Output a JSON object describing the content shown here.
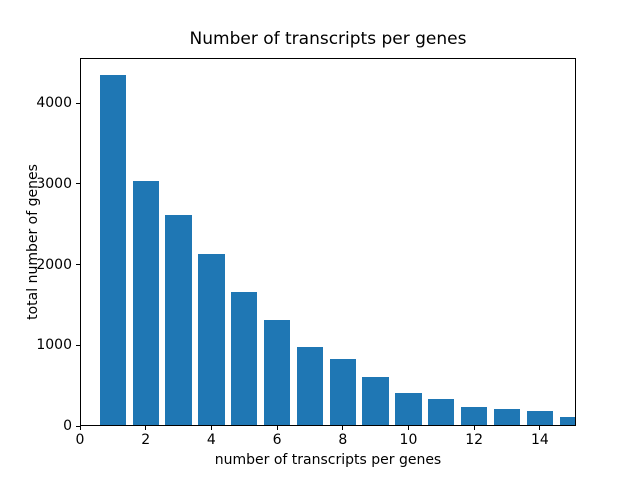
{
  "chart_data": {
    "type": "bar",
    "title": "Number of transcripts per genes",
    "xlabel": "number of transcripts per genes",
    "ylabel": "total number of genes",
    "categories": [
      1,
      2,
      3,
      4,
      5,
      6,
      7,
      8,
      9,
      10,
      11,
      12,
      13,
      14,
      15
    ],
    "values": [
      4350,
      3030,
      2610,
      2130,
      1660,
      1315,
      980,
      825,
      605,
      410,
      340,
      235,
      205,
      180,
      110
    ],
    "bar_color": "#1f77b4",
    "bar_width": 0.8,
    "xlim": [
      0,
      15.1
    ],
    "ylim": [
      0,
      4560
    ],
    "x_ticks": [
      0,
      2,
      4,
      6,
      8,
      10,
      12,
      14
    ],
    "y_ticks": [
      0,
      1000,
      2000,
      3000,
      4000
    ],
    "grid": false,
    "legend_position": "none"
  }
}
